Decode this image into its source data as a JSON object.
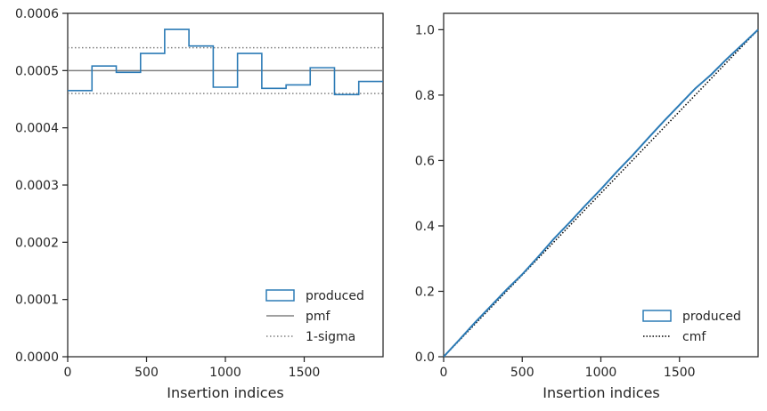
{
  "colors": {
    "produced": "#2c7bb6",
    "pmf": "#808080",
    "sigma": "#808080",
    "cmf": "#000000",
    "axes": "#262626"
  },
  "chart_data": [
    {
      "type": "histogram-step",
      "xlabel": "Insertion indices",
      "ylabel": "",
      "xlim": [
        0,
        2000
      ],
      "ylim": [
        0,
        0.0006
      ],
      "xticks": [
        0,
        500,
        1000,
        1500
      ],
      "xtick_labels": [
        "0",
        "500",
        "1000",
        "1500"
      ],
      "yticks": [
        0,
        0.0001,
        0.0002,
        0.0003,
        0.0004,
        0.0005,
        0.0006
      ],
      "ytick_labels": [
        "0.0000",
        "0.0001",
        "0.0002",
        "0.0003",
        "0.0004",
        "0.0005",
        "0.0006"
      ],
      "bin_edges": [
        0,
        154,
        308,
        462,
        615,
        769,
        923,
        1077,
        1231,
        1385,
        1538,
        1692,
        1846,
        2000
      ],
      "values": [
        0.000465,
        0.000508,
        0.000497,
        0.00053,
        0.000572,
        0.000543,
        0.000471,
        0.00053,
        0.000469,
        0.000475,
        0.000505,
        0.000458,
        0.000481
      ],
      "pmf": 0.0005,
      "sigma_lines": [
        0.00054,
        0.00046
      ],
      "legend_position": "lower right",
      "legend": [
        {
          "label": "produced",
          "kind": "patch"
        },
        {
          "label": "pmf",
          "kind": "solid"
        },
        {
          "label": "1-sigma",
          "kind": "dotted"
        }
      ]
    },
    {
      "type": "line",
      "xlabel": "Insertion indices",
      "ylabel": "",
      "xlim": [
        0,
        2000
      ],
      "ylim": [
        0,
        1.05
      ],
      "xticks": [
        0,
        500,
        1000,
        1500
      ],
      "xtick_labels": [
        "0",
        "500",
        "1000",
        "1500"
      ],
      "yticks": [
        0.0,
        0.2,
        0.4,
        0.6,
        0.8,
        1.0
      ],
      "ytick_labels": [
        "0.0",
        "0.2",
        "0.4",
        "0.6",
        "0.8",
        "1.0"
      ],
      "produced": {
        "x": [
          0,
          100,
          200,
          300,
          400,
          500,
          600,
          700,
          800,
          900,
          1000,
          1100,
          1200,
          1300,
          1400,
          1500,
          1600,
          1700,
          1800,
          1900,
          2000
        ],
        "y": [
          0,
          0.052,
          0.105,
          0.155,
          0.205,
          0.252,
          0.305,
          0.36,
          0.41,
          0.462,
          0.512,
          0.565,
          0.615,
          0.668,
          0.72,
          0.77,
          0.82,
          0.862,
          0.91,
          0.955,
          1.0
        ]
      },
      "cmf": {
        "x": [
          0,
          2000
        ],
        "y": [
          0,
          1.0
        ]
      },
      "legend_position": "lower right",
      "legend": [
        {
          "label": "produced",
          "kind": "patch"
        },
        {
          "label": "cmf",
          "kind": "dotted"
        }
      ]
    }
  ]
}
